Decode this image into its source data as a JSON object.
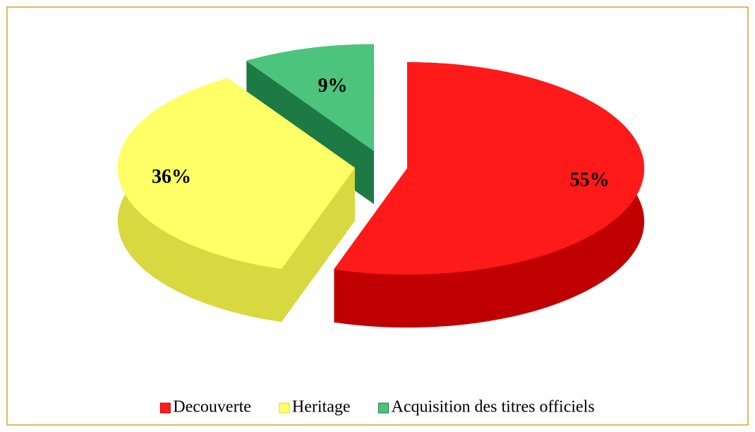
{
  "chart_data": {
    "type": "pie",
    "categories": [
      "Decouverte",
      "Heritage",
      "Acquisition des titres officiels"
    ],
    "values": [
      55,
      36,
      9
    ],
    "value_labels": [
      "55%",
      "36%",
      "9%"
    ],
    "colors": [
      "#ff1a1a",
      "#ffff66",
      "#4cc47e"
    ],
    "side_colors": [
      "#c00000",
      "#d8d840",
      "#1d7a45"
    ],
    "legend": "bottom"
  }
}
